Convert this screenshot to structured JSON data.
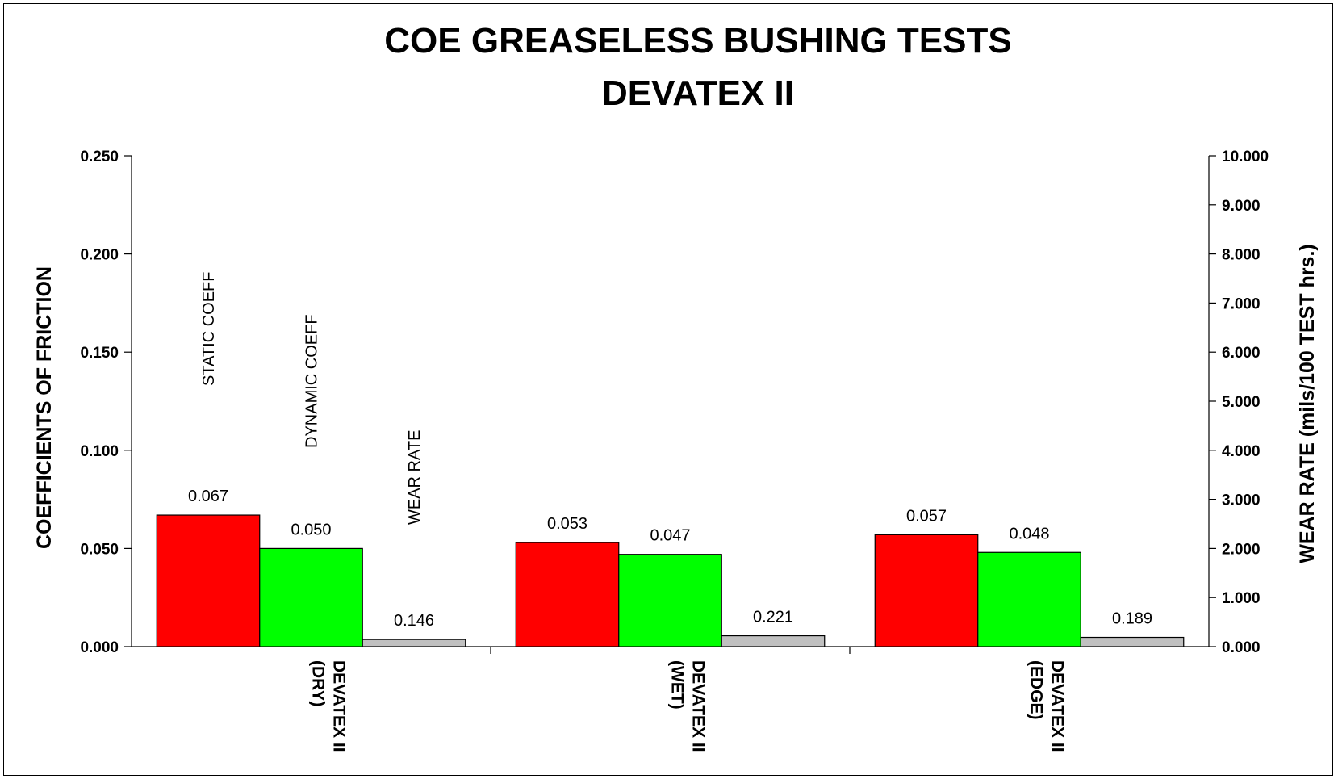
{
  "chart_data": {
    "type": "bar",
    "title": "COE GREASELESS BUSHING TESTS",
    "subtitle": "DEVATEX II",
    "ylabel": "COEFFICIENTS OF FRICTION",
    "y2label": "WEAR RATE (mils/100 TEST hrs.)",
    "ylim": [
      0,
      0.25
    ],
    "y2lim": [
      0,
      10
    ],
    "yticks": [
      "0.000",
      "0.050",
      "0.100",
      "0.150",
      "0.200",
      "0.250"
    ],
    "y2ticks": [
      "0.000",
      "1.000",
      "2.000",
      "3.000",
      "4.000",
      "5.000",
      "6.000",
      "7.000",
      "8.000",
      "9.000",
      "10.000"
    ],
    "categories": [
      [
        "DEVATEX II",
        "(DRY)"
      ],
      [
        "DEVATEX II",
        "(WET)"
      ],
      [
        "DEVATEX II",
        "(EDGE)"
      ]
    ],
    "series": [
      {
        "name": "STATIC COEFF",
        "axis": "left",
        "color": "#ff0000",
        "values": [
          0.067,
          0.053,
          0.057
        ],
        "labels": [
          "0.067",
          "0.053",
          "0.057"
        ]
      },
      {
        "name": "DYNAMIC COEFF",
        "axis": "left",
        "color": "#00ff00",
        "values": [
          0.05,
          0.047,
          0.048
        ],
        "labels": [
          "0.050",
          "0.047",
          "0.048"
        ]
      },
      {
        "name": "WEAR RATE",
        "axis": "right",
        "color": "#c0c0c0",
        "values": [
          0.146,
          0.221,
          0.189
        ],
        "labels": [
          "0.146",
          "0.221",
          "0.189"
        ]
      }
    ],
    "grid": false,
    "legend": "series names drawn vertically above first group"
  }
}
